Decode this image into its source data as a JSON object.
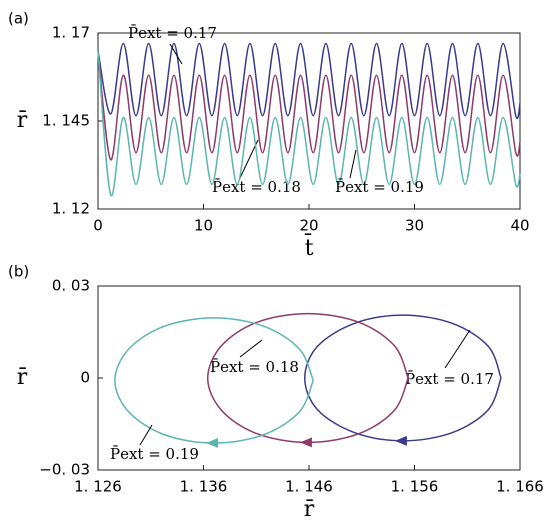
{
  "chart_data": [
    {
      "type": "line",
      "panel_label": "(a)",
      "xlabel": "t̄",
      "ylabel": "r̄",
      "x": [
        0,
        1.2,
        2.4,
        3.6,
        4.8,
        6.0,
        7.2,
        8.4,
        9.6,
        10.8,
        12.0,
        13.2,
        14.4,
        15.6,
        16.8,
        18.0,
        19.2,
        20.4,
        21.6,
        22.8,
        24.0,
        25.2,
        26.4,
        27.6,
        28.8,
        30.0,
        31.2,
        32.4,
        33.6,
        34.8,
        36.0,
        37.2,
        38.4,
        39.6,
        40
      ],
      "series": [
        {
          "name": "P̄ext = 0.17",
          "color": "#3a3a8c",
          "values": [
            1.165,
            1.147,
            1.167,
            1.1465,
            1.167,
            1.1465,
            1.167,
            1.1465,
            1.167,
            1.1465,
            1.167,
            1.1465,
            1.167,
            1.1465,
            1.167,
            1.1465,
            1.167,
            1.1465,
            1.167,
            1.1465,
            1.167,
            1.1465,
            1.167,
            1.1465,
            1.167,
            1.1465,
            1.167,
            1.1465,
            1.167,
            1.1465,
            1.167,
            1.1465,
            1.167,
            1.1465,
            1.15
          ]
        },
        {
          "name": "P̄ext = 0.18",
          "color": "#8e3a6a",
          "values": [
            1.165,
            1.134,
            1.158,
            1.136,
            1.158,
            1.136,
            1.158,
            1.136,
            1.158,
            1.136,
            1.158,
            1.136,
            1.158,
            1.136,
            1.158,
            1.136,
            1.158,
            1.136,
            1.158,
            1.136,
            1.158,
            1.136,
            1.158,
            1.136,
            1.158,
            1.136,
            1.158,
            1.136,
            1.158,
            1.136,
            1.158,
            1.136,
            1.158,
            1.136,
            1.139
          ]
        },
        {
          "name": "P̄ext = 0.19",
          "color": "#5bb5b0",
          "values": [
            1.165,
            1.124,
            1.146,
            1.127,
            1.146,
            1.127,
            1.146,
            1.127,
            1.146,
            1.127,
            1.146,
            1.127,
            1.146,
            1.127,
            1.146,
            1.127,
            1.146,
            1.127,
            1.146,
            1.127,
            1.146,
            1.127,
            1.146,
            1.127,
            1.146,
            1.127,
            1.146,
            1.127,
            1.146,
            1.127,
            1.146,
            1.127,
            1.146,
            1.127,
            1.13
          ]
        }
      ],
      "xlim": [
        0,
        40
      ],
      "xticks": [
        0,
        10,
        20,
        30,
        40
      ],
      "ylim": [
        1.12,
        1.17
      ],
      "yticks": [
        {
          "value": 1.12,
          "label": "1. 12"
        },
        {
          "value": 1.145,
          "label": "1. 145"
        },
        {
          "value": 1.17,
          "label": "1. 17"
        }
      ]
    },
    {
      "type": "phase",
      "panel_label": "(b)",
      "xlabel": "r̄",
      "ylabel": "r̄",
      "series": [
        {
          "name": "P̄ext = 0.17",
          "color": "#3a3a8c",
          "x": [
            1.1642,
            1.163,
            1.1596,
            1.1549,
            1.1503,
            1.1468,
            1.1456,
            1.1468,
            1.1503,
            1.1549,
            1.1596,
            1.163,
            1.1642
          ],
          "values": [
            0,
            0.0103,
            0.0178,
            0.0205,
            0.0178,
            0.0103,
            0,
            -0.0103,
            -0.0178,
            -0.0205,
            -0.0178,
            -0.0103,
            0
          ]
        },
        {
          "name": "P̄ext = 0.18",
          "color": "#8e3a6a",
          "x": [
            1.1554,
            1.1541,
            1.1507,
            1.1459,
            1.1411,
            1.1377,
            1.1364,
            1.1377,
            1.1411,
            1.1459,
            1.1507,
            1.1541,
            1.1554
          ],
          "values": [
            0,
            0.0105,
            0.0182,
            0.021,
            0.0182,
            0.0105,
            0,
            -0.0105,
            -0.0182,
            -0.021,
            -0.0182,
            -0.0105,
            0
          ]
        },
        {
          "name": "P̄ext = 0.19",
          "color": "#5bb5b0",
          "x": [
            1.1464,
            1.1451,
            1.1417,
            1.137,
            1.1323,
            1.1289,
            1.1276,
            1.1289,
            1.1323,
            1.137,
            1.1417,
            1.1451,
            1.1464
          ],
          "values": [
            -0.0008,
            0.0094,
            0.0169,
            0.0196,
            0.0169,
            0.0094,
            -0.0008,
            -0.011,
            -0.0185,
            -0.0212,
            -0.0185,
            -0.011,
            -0.0008
          ]
        }
      ],
      "xlim": [
        1.126,
        1.166
      ],
      "xticks": [
        {
          "value": 1.126,
          "label": "1. 126"
        },
        {
          "value": 1.136,
          "label": "1. 136"
        },
        {
          "value": 1.146,
          "label": "1. 146"
        },
        {
          "value": 1.156,
          "label": "1. 156"
        },
        {
          "value": 1.166,
          "label": "1. 166"
        }
      ],
      "ylim": [
        -0.03,
        0.03
      ],
      "yticks": [
        {
          "value": -0.03,
          "label": "−0. 03"
        },
        0,
        {
          "value": 0.03,
          "label": "0. 03"
        }
      ]
    }
  ]
}
